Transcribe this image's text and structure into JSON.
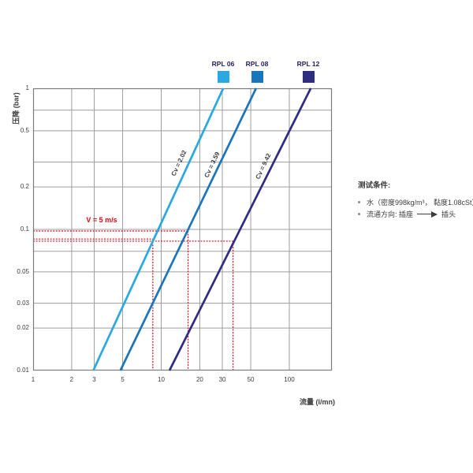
{
  "chart_data": {
    "type": "line",
    "title": "",
    "x_axis": {
      "label": "流量 (l/mn)",
      "scale": "log",
      "range": [
        1,
        215
      ],
      "ticks": [
        "1",
        "2",
        "3",
        "5",
        "10",
        "20",
        "30",
        "50",
        "100"
      ],
      "gridlines": [
        2,
        3,
        5,
        10,
        20,
        30,
        50,
        100
      ]
    },
    "y_axis": {
      "label": "压降 (bar)",
      "scale": "log",
      "range": [
        0.01,
        1
      ],
      "ticks": [
        "1",
        "0.5",
        "0.2",
        "0.1",
        "0.05",
        "0.03",
        "0.02",
        "0.01"
      ],
      "gridlines": [
        0.7,
        0.5,
        0.3,
        0.2,
        0.1,
        0.07,
        0.05,
        0.03,
        0.02
      ]
    },
    "grid_color": "#9d9d9d",
    "frame_color": "#7b7b7b",
    "series": [
      {
        "name": "RPL 06",
        "cv_label": "Cv = 2.02",
        "color": "#29A9E0",
        "points_flow_vs_bar": [
          [
            2.95,
            0.01
          ],
          [
            30.5,
            1
          ]
        ]
      },
      {
        "name": "RPL 08",
        "cv_label": "Cv = 3.59",
        "color": "#1B75BC",
        "points_flow_vs_bar": [
          [
            4.8,
            0.01
          ],
          [
            55,
            1
          ]
        ]
      },
      {
        "name": "RPL 12",
        "cv_label": "Cv = 9.42",
        "color": "#2E2D82",
        "points_flow_vs_bar": [
          [
            11.6,
            0.01
          ],
          [
            147,
            1
          ]
        ]
      }
    ],
    "annotation": {
      "label": "V = 5 m/s",
      "color": "#E30613",
      "operating_points_flow_vs_bar": [
        [
          8.6,
          0.0855
        ],
        [
          16.2,
          0.0975
        ],
        [
          36.4,
          0.0825
        ]
      ]
    },
    "legend_position": "top"
  },
  "legend": {
    "items": [
      {
        "label": "RPL 06",
        "color": "#29A9E0"
      },
      {
        "label": "RPL 08",
        "color": "#1B75BC"
      },
      {
        "label": "RPL 12",
        "color": "#2E2D82"
      }
    ]
  },
  "conditions": {
    "title": "测试条件:",
    "water_item": "水（密度998kg/m³， 黏度1.08cSt）",
    "flow_direction_pre": "流通方向: 插座",
    "flow_direction_post": "插头",
    "arrow_icon": "long-right-arrow"
  }
}
